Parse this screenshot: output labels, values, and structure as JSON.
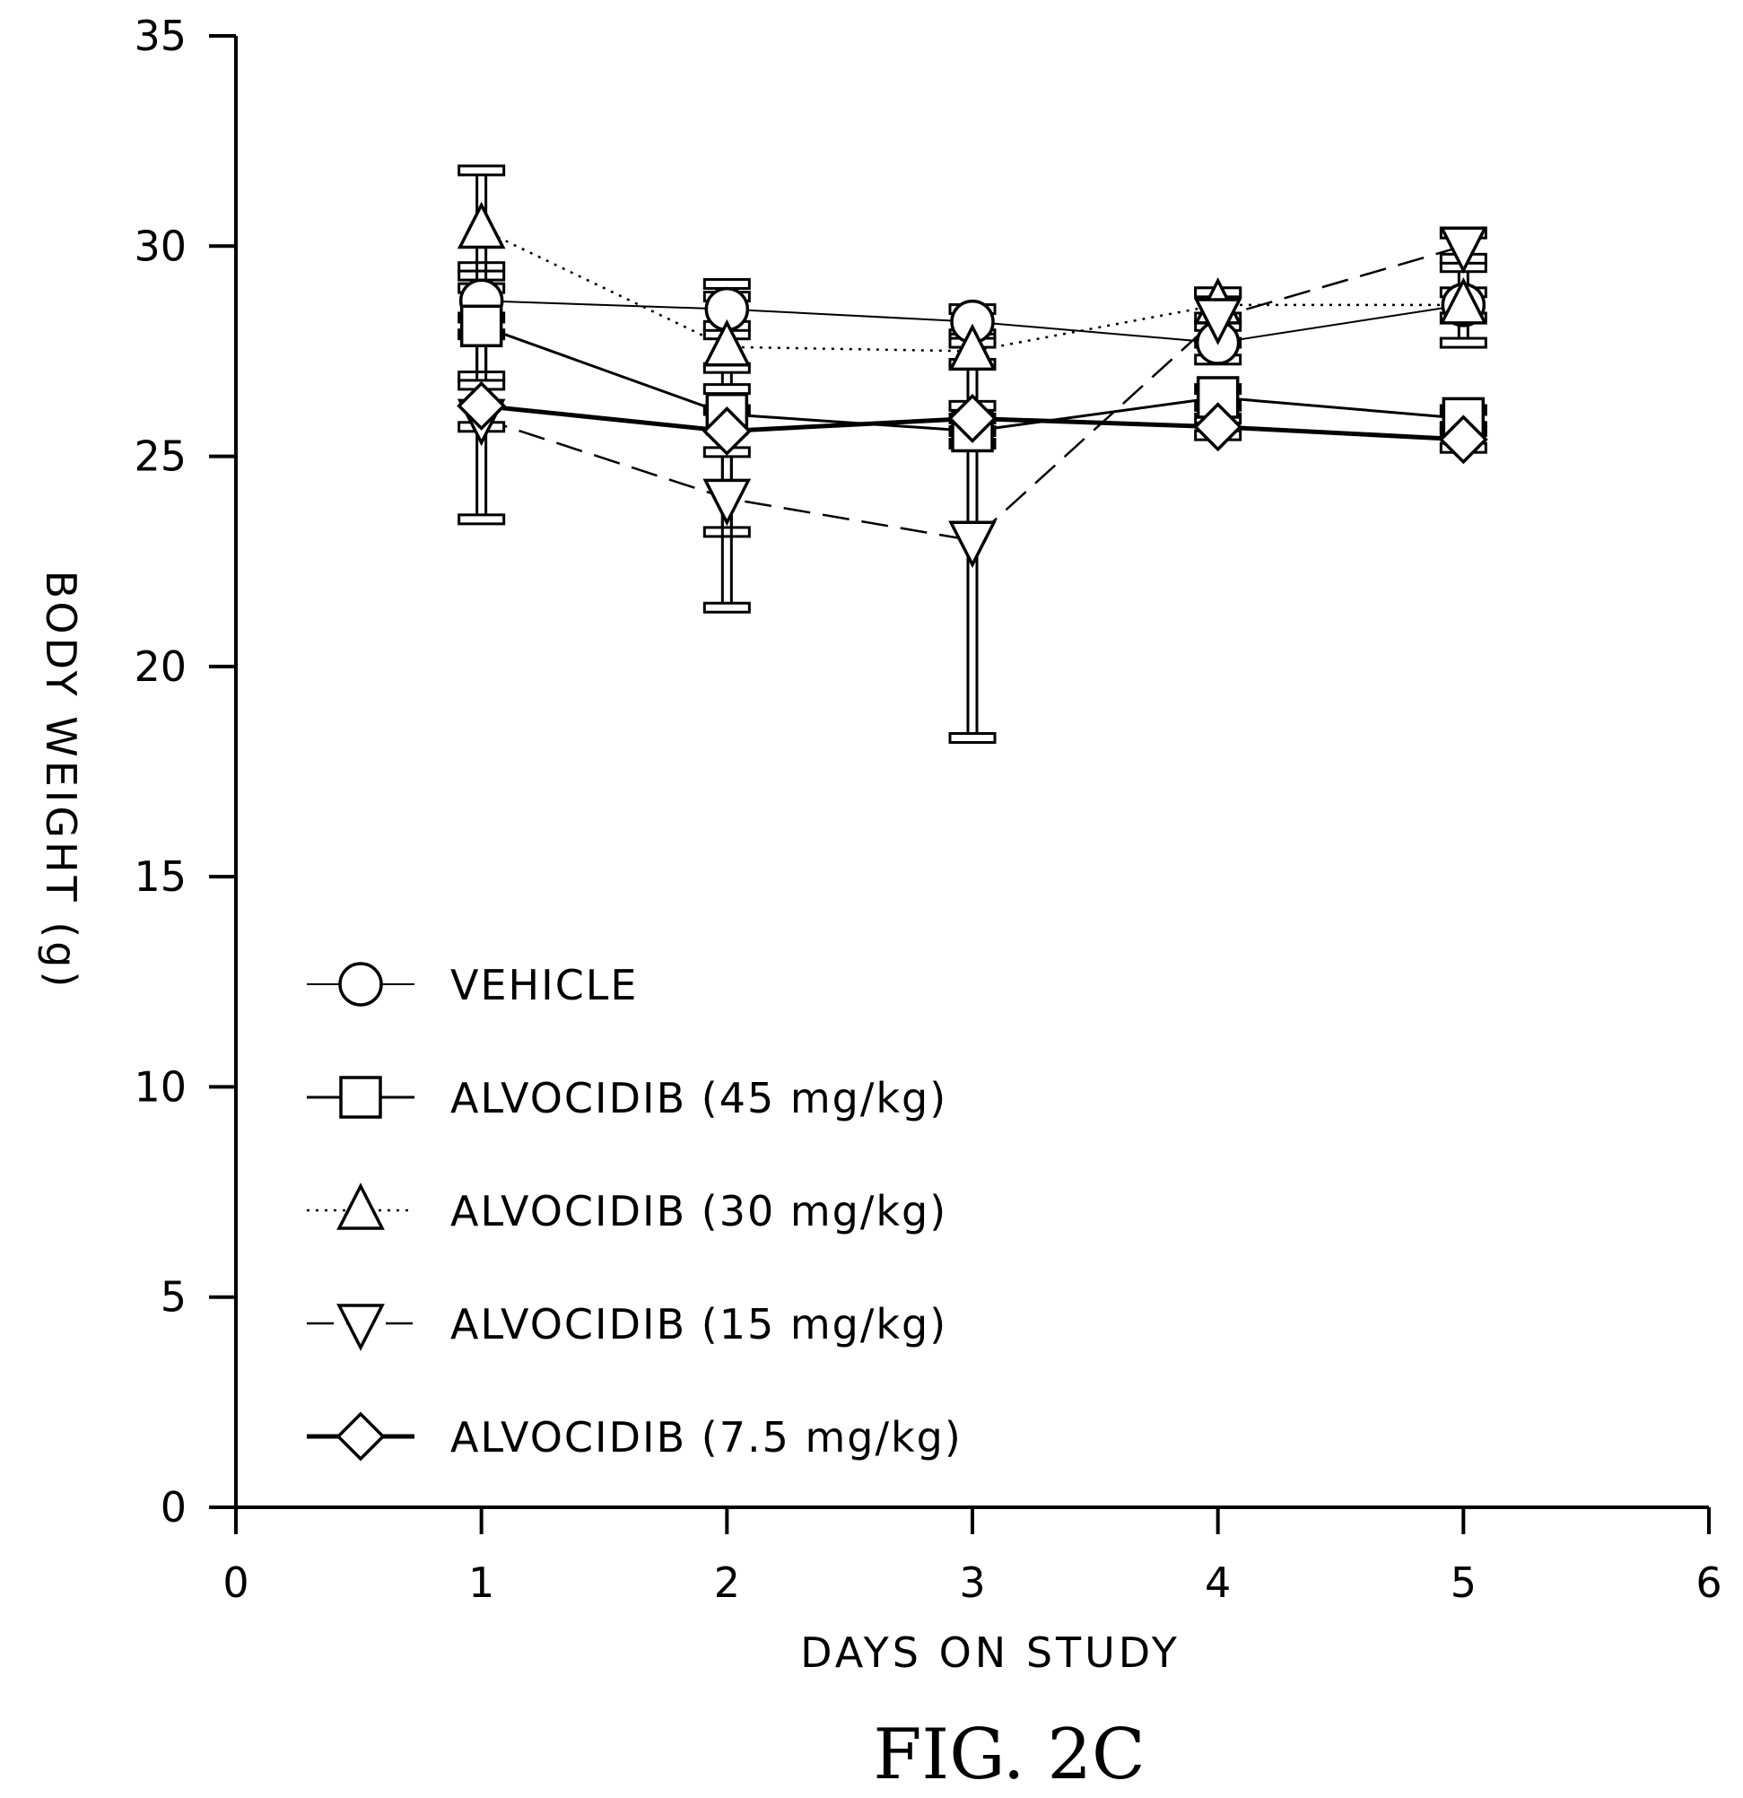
{
  "chart_data": {
    "type": "line",
    "title": "",
    "caption": "FIG. 2C",
    "xlabel": "DAYS ON STUDY",
    "ylabel": "BODY WEIGHT (g)",
    "xlim": [
      0,
      6
    ],
    "ylim": [
      0,
      35
    ],
    "xticks": [
      0,
      1,
      2,
      3,
      4,
      5,
      6
    ],
    "yticks": [
      0,
      5,
      10,
      15,
      20,
      25,
      30,
      35
    ],
    "x": [
      1,
      2,
      3,
      4,
      5
    ],
    "grid": false,
    "legend_position": "lower-left",
    "series": [
      {
        "name": "VEHICLE",
        "marker": "circle",
        "line_style": "thin-solid",
        "values": [
          28.7,
          28.5,
          28.2,
          27.7,
          28.6
        ],
        "error": [
          0.8,
          0.6,
          0.3,
          0.4,
          0.9
        ]
      },
      {
        "name": "ALVOCIDIB (45 mg/kg)",
        "marker": "square",
        "line_style": "solid",
        "values": [
          28.1,
          26.0,
          25.6,
          26.4,
          25.9
        ],
        "error": [
          1.2,
          2.8,
          0.3,
          0.2,
          0.2
        ]
      },
      {
        "name": "ALVOCIDIB (30 mg/kg)",
        "marker": "triangle-up",
        "line_style": "dotted",
        "values": [
          30.4,
          27.6,
          27.5,
          28.6,
          28.6
        ],
        "error": [
          1.4,
          0.5,
          0.3,
          0.3,
          0.3
        ]
      },
      {
        "name": "ALVOCIDIB (15 mg/kg)",
        "marker": "triangle-down",
        "line_style": "dashed",
        "values": [
          25.9,
          24.0,
          23.0,
          28.3,
          30.0
        ],
        "error": [
          2.4,
          2.6,
          4.7,
          0.6,
          0.3
        ]
      },
      {
        "name": "ALVOCIDIB (7.5 mg/kg)",
        "marker": "diamond",
        "line_style": "thick-solid",
        "values": [
          26.2,
          25.6,
          25.9,
          25.7,
          25.4
        ],
        "error": [
          0.5,
          0.5,
          0.3,
          0.2,
          0.2
        ]
      }
    ]
  }
}
